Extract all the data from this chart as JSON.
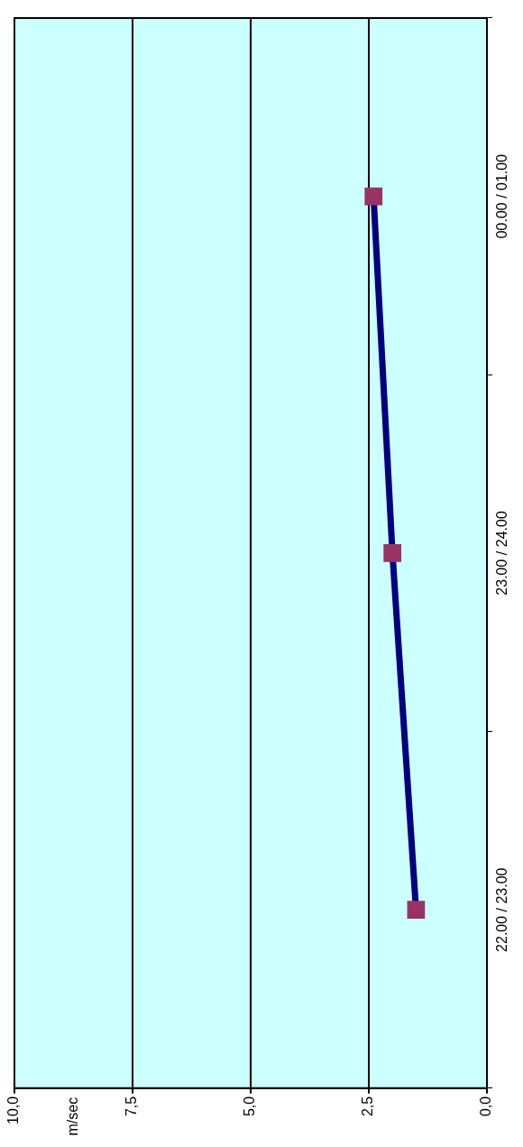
{
  "chart_data": {
    "type": "line",
    "orientation": "horizontal",
    "annotations": [
      "m/sec"
    ],
    "categories": [
      "00.00 / 01.00",
      "23.00 / 24.00",
      "22.00 / 23.00"
    ],
    "series": [
      {
        "color": "#000080",
        "values": [
          2.4,
          2.0,
          1.5
        ]
      }
    ],
    "xlim": [
      10,
      0
    ],
    "xticks": [
      {
        "value": 10,
        "label": "10,0"
      },
      {
        "value": 7.5,
        "label": "7,5"
      },
      {
        "value": 5,
        "label": "5,0"
      },
      {
        "value": 2.5,
        "label": "2,5"
      },
      {
        "value": 0,
        "label": "0,0"
      }
    ],
    "grid": "x",
    "legend": false,
    "marker": "square",
    "line_style": "solid"
  }
}
